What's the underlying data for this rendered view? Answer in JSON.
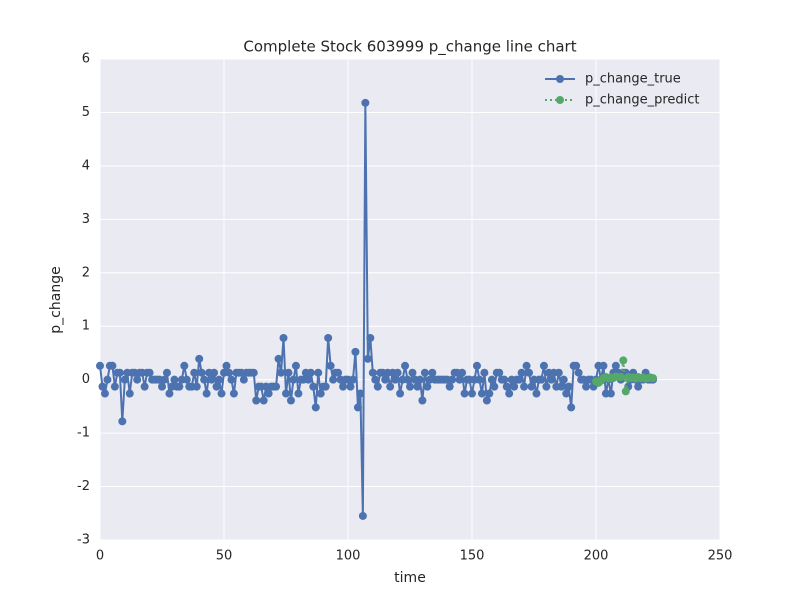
{
  "chart_data": {
    "type": "line",
    "title": "Complete Stock 603999 p_change line chart",
    "x_label": "time",
    "y_label": "p_change",
    "xlim": [
      0,
      250
    ],
    "ylim": [
      -3,
      6
    ],
    "xticks": [
      0,
      50,
      100,
      150,
      200,
      250
    ],
    "yticks": [
      -3,
      -2,
      -1,
      0,
      1,
      2,
      3,
      4,
      5,
      6
    ],
    "grid": true,
    "legend": "upper right",
    "series": [
      {
        "name": "p_change_true",
        "color": "#4c72b0",
        "linestyle": "solid",
        "x": [
          0,
          1,
          2,
          3,
          4,
          5,
          6,
          7,
          8,
          9,
          10,
          11,
          12,
          13,
          14,
          15,
          16,
          17,
          18,
          19,
          20,
          21,
          22,
          23,
          24,
          25,
          26,
          27,
          28,
          29,
          30,
          31,
          32,
          33,
          34,
          35,
          36,
          37,
          38,
          39,
          40,
          41,
          42,
          43,
          44,
          45,
          46,
          47,
          48,
          49,
          50,
          51,
          52,
          53,
          54,
          55,
          56,
          57,
          58,
          59,
          60,
          61,
          62,
          63,
          64,
          65,
          66,
          67,
          68,
          69,
          70,
          71,
          72,
          73,
          74,
          75,
          76,
          77,
          78,
          79,
          80,
          81,
          82,
          83,
          84,
          85,
          86,
          87,
          88,
          89,
          90,
          91,
          92,
          93,
          94,
          95,
          96,
          97,
          98,
          99,
          100,
          101,
          102,
          103,
          104,
          105,
          106,
          107,
          108,
          109,
          110,
          111,
          112,
          113,
          114,
          115,
          116,
          117,
          118,
          119,
          120,
          121,
          122,
          123,
          124,
          125,
          126,
          127,
          128,
          129,
          130,
          131,
          132,
          133,
          134,
          135,
          136,
          137,
          138,
          139,
          140,
          141,
          142,
          143,
          144,
          145,
          146,
          147,
          148,
          149,
          150,
          151,
          152,
          153,
          154,
          155,
          156,
          157,
          158,
          159,
          160,
          161,
          162,
          163,
          164,
          165,
          166,
          167,
          168,
          169,
          170,
          171,
          172,
          173,
          174,
          175,
          176,
          177,
          178,
          179,
          180,
          181,
          182,
          183,
          184,
          185,
          186,
          187,
          188,
          189,
          190,
          191,
          192,
          193,
          194,
          195,
          196,
          197,
          198,
          199,
          200,
          201,
          202,
          203,
          204,
          205,
          206,
          207,
          208,
          209,
          210,
          211,
          212,
          213,
          214,
          215,
          216,
          217,
          218,
          219,
          220,
          221,
          222,
          223
        ],
        "values": [
          0.26,
          -0.13,
          -0.26,
          0,
          0.26,
          0.26,
          -0.13,
          0.13,
          0.13,
          -0.78,
          0,
          0.13,
          -0.26,
          0.13,
          0.13,
          0,
          0.13,
          0.13,
          -0.13,
          0.13,
          0.13,
          0,
          0,
          0,
          0,
          -0.13,
          0,
          0.13,
          -0.26,
          -0.13,
          0,
          -0.13,
          -0.13,
          0,
          0.26,
          0,
          -0.13,
          -0.13,
          0.13,
          -0.13,
          0.39,
          0.13,
          0,
          -0.26,
          0.13,
          0,
          0.13,
          -0.13,
          0,
          -0.26,
          0.13,
          0.26,
          0.13,
          0,
          -0.26,
          0.13,
          0.13,
          0.13,
          0,
          0.13,
          0.13,
          0.13,
          0.13,
          -0.39,
          -0.13,
          -0.13,
          -0.39,
          -0.13,
          -0.26,
          -0.13,
          -0.13,
          -0.13,
          0.39,
          0.13,
          0.78,
          -0.26,
          0.13,
          -0.39,
          0,
          0.26,
          -0.26,
          0,
          0,
          0.13,
          0,
          0.13,
          -0.13,
          -0.52,
          0.13,
          -0.26,
          -0.13,
          -0.13,
          0.78,
          0.26,
          0,
          0.13,
          0.13,
          0,
          -0.13,
          0,
          0,
          -0.13,
          0,
          0.52,
          -0.52,
          -0.26,
          -2.55,
          5.18,
          0.39,
          0.78,
          0.13,
          0,
          -0.13,
          0.13,
          0.13,
          0,
          0.13,
          -0.13,
          0.13,
          0,
          0.13,
          -0.26,
          0,
          0.26,
          0,
          -0.13,
          0.13,
          0,
          -0.13,
          0,
          -0.39,
          0.13,
          -0.13,
          0,
          0.13,
          0,
          0,
          0,
          0,
          0,
          0,
          -0.13,
          0,
          0.13,
          0.13,
          0,
          0.13,
          -0.26,
          0,
          0,
          -0.26,
          0,
          0.26,
          0,
          -0.26,
          0.13,
          -0.39,
          -0.26,
          0,
          -0.13,
          0.13,
          0.13,
          0,
          0,
          -0.13,
          -0.26,
          0,
          -0.13,
          0,
          0,
          0.13,
          -0.13,
          0.26,
          0.13,
          -0.13,
          0,
          -0.26,
          0,
          0,
          0.26,
          -0.13,
          0.13,
          0,
          0.13,
          -0.13,
          0.13,
          -0.13,
          0,
          -0.26,
          -0.13,
          -0.52,
          0.26,
          0.26,
          0.13,
          0,
          0,
          -0.13,
          0,
          0,
          -0.13,
          0,
          0.26,
          0,
          0.26,
          -0.26,
          0,
          -0.26,
          0.13,
          0.26,
          0.13,
          0,
          0.13,
          0.13,
          -0.13,
          0,
          0.13,
          0,
          -0.13,
          0,
          0,
          0.13,
          0,
          0,
          0
        ]
      },
      {
        "name": "p_change_predict",
        "color": "#55a868",
        "linestyle": "dotted",
        "x": [
          200,
          201,
          202,
          203,
          204,
          205,
          206,
          207,
          208,
          209,
          210,
          211,
          212,
          213,
          214,
          215,
          216,
          217,
          218,
          219,
          220,
          221,
          222,
          223
        ],
        "values": [
          -0.03,
          -0.06,
          -0.02,
          0.03,
          0.05,
          0.02,
          0.04,
          0.03,
          0.06,
          0.05,
          0.05,
          0.36,
          -0.22,
          0.05,
          0.03,
          0.04,
          0.02,
          0.05,
          0.03,
          0.04,
          0.02,
          0.03,
          0.04,
          0.03
        ]
      }
    ]
  }
}
